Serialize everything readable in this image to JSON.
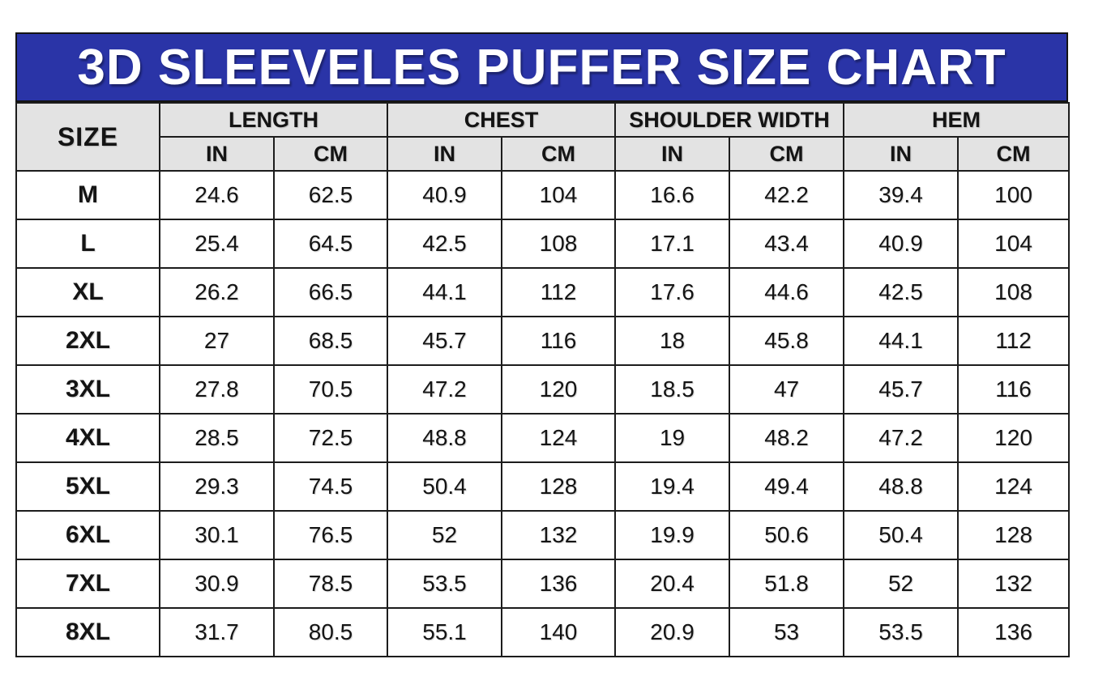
{
  "title": "3D SLEEVELES PUFFER SIZE CHART",
  "colors": {
    "banner_bg": "#2a34a7",
    "banner_text": "#ffffff",
    "header_bg": "#e3e3e3",
    "border": "#1c1c1c",
    "row_bg": "#ffffff"
  },
  "table": {
    "size_header": "SIZE",
    "groups": [
      {
        "label": "LENGTH"
      },
      {
        "label": "CHEST"
      },
      {
        "label": "SHOULDER WIDTH"
      },
      {
        "label": "HEM"
      }
    ],
    "unit_headers": [
      "IN",
      "CM",
      "IN",
      "CM",
      "IN",
      "CM",
      "IN",
      "CM"
    ],
    "rows": [
      {
        "size": "M",
        "values": [
          "24.6",
          "62.5",
          "40.9",
          "104",
          "16.6",
          "42.2",
          "39.4",
          "100"
        ]
      },
      {
        "size": "L",
        "values": [
          "25.4",
          "64.5",
          "42.5",
          "108",
          "17.1",
          "43.4",
          "40.9",
          "104"
        ]
      },
      {
        "size": "XL",
        "values": [
          "26.2",
          "66.5",
          "44.1",
          "112",
          "17.6",
          "44.6",
          "42.5",
          "108"
        ]
      },
      {
        "size": "2XL",
        "values": [
          "27",
          "68.5",
          "45.7",
          "116",
          "18",
          "45.8",
          "44.1",
          "112"
        ]
      },
      {
        "size": "3XL",
        "values": [
          "27.8",
          "70.5",
          "47.2",
          "120",
          "18.5",
          "47",
          "45.7",
          "116"
        ]
      },
      {
        "size": "4XL",
        "values": [
          "28.5",
          "72.5",
          "48.8",
          "124",
          "19",
          "48.2",
          "47.2",
          "120"
        ]
      },
      {
        "size": "5XL",
        "values": [
          "29.3",
          "74.5",
          "50.4",
          "128",
          "19.4",
          "49.4",
          "48.8",
          "124"
        ]
      },
      {
        "size": "6XL",
        "values": [
          "30.1",
          "76.5",
          "52",
          "132",
          "19.9",
          "50.6",
          "50.4",
          "128"
        ]
      },
      {
        "size": "7XL",
        "values": [
          "30.9",
          "78.5",
          "53.5",
          "136",
          "20.4",
          "51.8",
          "52",
          "132"
        ]
      },
      {
        "size": "8XL",
        "values": [
          "31.7",
          "80.5",
          "55.1",
          "140",
          "20.9",
          "53",
          "53.5",
          "136"
        ]
      }
    ]
  },
  "chart_data": {
    "type": "table",
    "title": "3D SLEEVELES PUFFER SIZE CHART",
    "columns": [
      "SIZE",
      "LENGTH IN",
      "LENGTH CM",
      "CHEST IN",
      "CHEST CM",
      "SHOULDER WIDTH IN",
      "SHOULDER WIDTH CM",
      "HEM IN",
      "HEM CM"
    ],
    "rows": [
      [
        "M",
        24.6,
        62.5,
        40.9,
        104,
        16.6,
        42.2,
        39.4,
        100
      ],
      [
        "L",
        25.4,
        64.5,
        42.5,
        108,
        17.1,
        43.4,
        40.9,
        104
      ],
      [
        "XL",
        26.2,
        66.5,
        44.1,
        112,
        17.6,
        44.6,
        42.5,
        108
      ],
      [
        "2XL",
        27,
        68.5,
        45.7,
        116,
        18,
        45.8,
        44.1,
        112
      ],
      [
        "3XL",
        27.8,
        70.5,
        47.2,
        120,
        18.5,
        47,
        45.7,
        116
      ],
      [
        "4XL",
        28.5,
        72.5,
        48.8,
        124,
        19,
        48.2,
        47.2,
        120
      ],
      [
        "5XL",
        29.3,
        74.5,
        50.4,
        128,
        19.4,
        49.4,
        48.8,
        124
      ],
      [
        "6XL",
        30.1,
        76.5,
        52,
        132,
        19.9,
        50.6,
        50.4,
        128
      ],
      [
        "7XL",
        30.9,
        78.5,
        53.5,
        136,
        20.4,
        51.8,
        52,
        132
      ],
      [
        "8XL",
        31.7,
        80.5,
        55.1,
        140,
        20.9,
        53,
        53.5,
        136
      ]
    ]
  }
}
